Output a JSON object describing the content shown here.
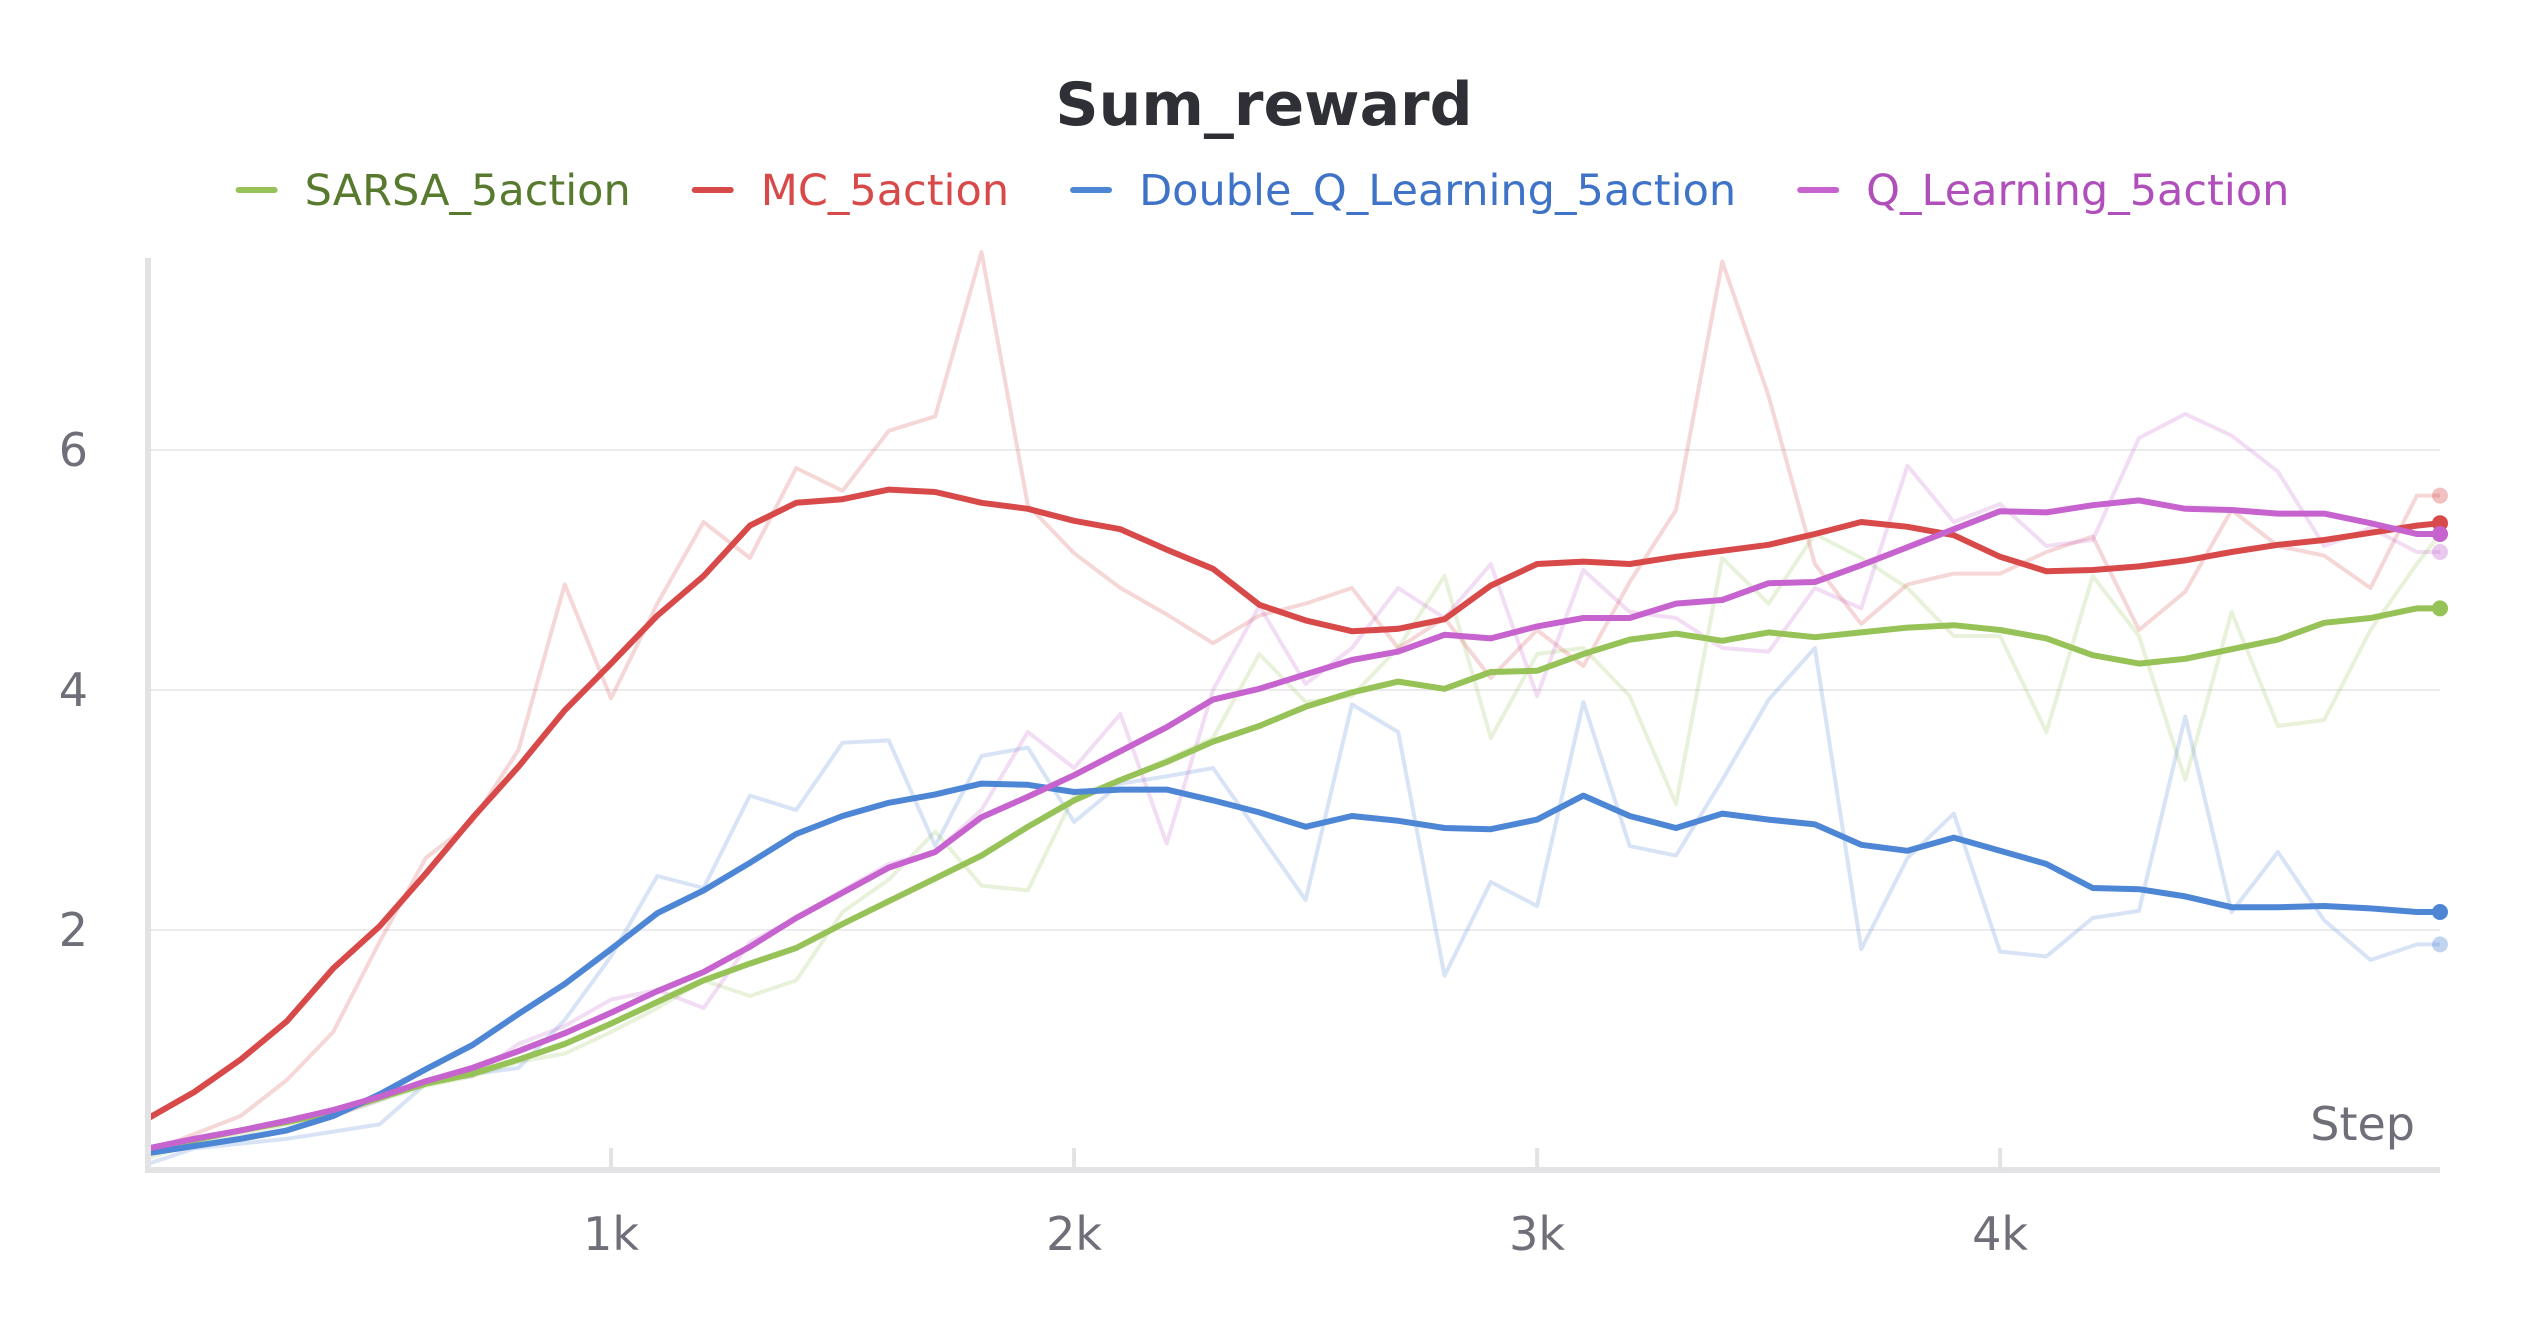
{
  "chart_data": {
    "type": "line",
    "title": "Sum_reward",
    "xlabel": "Step",
    "ylabel": "",
    "xlim": [
      0,
      4950
    ],
    "ylim": [
      0,
      7.6
    ],
    "x_ticks": [
      1000,
      2000,
      3000,
      4000
    ],
    "x_tick_labels": [
      "1k",
      "2k",
      "3k",
      "4k"
    ],
    "y_ticks": [
      2,
      4,
      6
    ],
    "y_tick_labels": [
      "2",
      "4",
      "6"
    ],
    "grid": true,
    "legend_position": "top",
    "x": [
      0,
      100,
      200,
      300,
      400,
      500,
      600,
      700,
      800,
      900,
      1000,
      1100,
      1200,
      1300,
      1400,
      1500,
      1600,
      1700,
      1800,
      1900,
      2000,
      2100,
      2200,
      2300,
      2400,
      2500,
      2600,
      2700,
      2800,
      2900,
      3000,
      3100,
      3200,
      3300,
      3400,
      3500,
      3600,
      3700,
      3800,
      3900,
      4000,
      4100,
      4200,
      4300,
      4400,
      4500,
      4600,
      4700,
      4800,
      4900,
      4950
    ],
    "series": [
      {
        "name": "SARSA_5action",
        "color": "#96c257",
        "text_color": "#587a2e",
        "values": [
          0.18,
          0.25,
          0.33,
          0.4,
          0.48,
          0.6,
          0.72,
          0.8,
          0.92,
          1.05,
          1.22,
          1.4,
          1.58,
          1.72,
          1.85,
          2.05,
          2.24,
          2.43,
          2.62,
          2.86,
          3.08,
          3.25,
          3.4,
          3.57,
          3.7,
          3.86,
          3.98,
          4.07,
          4.01,
          4.15,
          4.16,
          4.3,
          4.42,
          4.47,
          4.41,
          4.48,
          4.44,
          4.48,
          4.52,
          4.54,
          4.5,
          4.43,
          4.29,
          4.22,
          4.26,
          4.34,
          4.42,
          4.56,
          4.6,
          4.68,
          4.68
        ],
        "raw": [
          0.1,
          0.22,
          0.3,
          0.38,
          0.45,
          0.58,
          0.7,
          0.78,
          0.9,
          0.97,
          1.15,
          1.35,
          1.58,
          1.45,
          1.58,
          2.15,
          2.42,
          2.82,
          2.37,
          2.33,
          3.12,
          3.25,
          3.42,
          3.6,
          4.3,
          3.9,
          3.95,
          4.35,
          4.95,
          3.6,
          4.3,
          4.35,
          3.95,
          3.05,
          5.1,
          4.72,
          5.3,
          5.1,
          4.85,
          4.45,
          4.45,
          3.65,
          4.95,
          4.45,
          3.25,
          4.65,
          3.7,
          3.75,
          4.5,
          5.05,
          5.3
        ]
      },
      {
        "name": "MC_5action",
        "color": "#d84a4a",
        "text_color": "#d84a4a",
        "values": [
          0.43,
          0.65,
          0.92,
          1.24,
          1.68,
          2.03,
          2.47,
          2.93,
          3.36,
          3.83,
          4.22,
          4.62,
          4.95,
          5.37,
          5.56,
          5.59,
          5.67,
          5.65,
          5.56,
          5.51,
          5.41,
          5.34,
          5.17,
          5.01,
          4.71,
          4.58,
          4.49,
          4.51,
          4.59,
          4.87,
          5.05,
          5.07,
          5.05,
          5.11,
          5.16,
          5.21,
          5.3,
          5.4,
          5.36,
          5.29,
          5.11,
          4.99,
          5.0,
          5.03,
          5.08,
          5.15,
          5.21,
          5.25,
          5.31,
          5.37,
          5.39
        ],
        "raw": [
          0.15,
          0.3,
          0.45,
          0.75,
          1.15,
          1.9,
          2.6,
          2.9,
          3.5,
          4.88,
          3.93,
          4.72,
          5.4,
          5.1,
          5.85,
          5.66,
          6.16,
          6.28,
          7.65,
          5.54,
          5.14,
          4.85,
          4.63,
          4.39,
          4.62,
          4.72,
          4.85,
          4.35,
          4.6,
          4.1,
          4.5,
          4.2,
          4.9,
          5.5,
          7.57,
          6.45,
          5.05,
          4.55,
          4.88,
          4.97,
          4.97,
          5.15,
          5.28,
          4.5,
          4.82,
          5.5,
          5.2,
          5.12,
          4.85,
          5.62,
          5.62
        ]
      },
      {
        "name": "Double_Q_Learning_5action",
        "color": "#4e86d6",
        "text_color": "#3f73c7",
        "values": [
          0.14,
          0.2,
          0.26,
          0.33,
          0.45,
          0.63,
          0.84,
          1.04,
          1.3,
          1.55,
          1.84,
          2.14,
          2.33,
          2.56,
          2.8,
          2.95,
          3.06,
          3.13,
          3.22,
          3.21,
          3.15,
          3.17,
          3.17,
          3.08,
          2.98,
          2.86,
          2.95,
          2.91,
          2.85,
          2.84,
          2.92,
          3.12,
          2.95,
          2.85,
          2.97,
          2.92,
          2.88,
          2.71,
          2.66,
          2.77,
          2.66,
          2.55,
          2.35,
          2.34,
          2.28,
          2.19,
          2.19,
          2.2,
          2.18,
          2.15,
          2.15
        ],
        "raw": [
          0.05,
          0.18,
          0.22,
          0.26,
          0.32,
          0.38,
          0.72,
          0.8,
          0.85,
          1.25,
          1.78,
          2.45,
          2.35,
          3.12,
          3.0,
          3.56,
          3.58,
          2.7,
          3.45,
          3.52,
          2.9,
          3.22,
          3.28,
          3.35,
          2.8,
          2.25,
          3.88,
          3.65,
          1.62,
          2.4,
          2.2,
          3.9,
          2.7,
          2.62,
          3.25,
          3.92,
          4.35,
          1.84,
          2.6,
          2.97,
          1.82,
          1.78,
          2.1,
          2.16,
          3.78,
          2.15,
          2.65,
          2.08,
          1.75,
          1.88,
          1.88
        ]
      },
      {
        "name": "Q_Learning_5action",
        "color": "#c663cf",
        "text_color": "#b04fbb",
        "values": [
          0.18,
          0.26,
          0.33,
          0.41,
          0.5,
          0.61,
          0.74,
          0.85,
          0.99,
          1.14,
          1.31,
          1.49,
          1.65,
          1.86,
          2.1,
          2.31,
          2.52,
          2.65,
          2.94,
          3.11,
          3.29,
          3.49,
          3.69,
          3.92,
          4.01,
          4.13,
          4.25,
          4.32,
          4.46,
          4.43,
          4.53,
          4.6,
          4.6,
          4.72,
          4.75,
          4.89,
          4.9,
          5.04,
          5.19,
          5.34,
          5.49,
          5.48,
          5.54,
          5.58,
          5.51,
          5.5,
          5.47,
          5.47,
          5.39,
          5.3,
          5.3
        ],
        "raw": [
          0.15,
          0.25,
          0.32,
          0.4,
          0.45,
          0.58,
          0.75,
          0.78,
          1.05,
          1.2,
          1.42,
          1.5,
          1.35,
          1.9,
          2.1,
          2.33,
          2.55,
          2.65,
          3.0,
          3.65,
          3.35,
          3.8,
          2.72,
          4.0,
          4.7,
          4.05,
          4.35,
          4.85,
          4.6,
          5.05,
          3.95,
          5.0,
          4.65,
          4.6,
          4.35,
          4.32,
          4.85,
          4.68,
          5.87,
          5.4,
          5.55,
          5.2,
          5.25,
          6.1,
          6.3,
          6.12,
          5.82,
          5.2,
          5.35,
          5.15,
          5.15
        ]
      }
    ]
  }
}
